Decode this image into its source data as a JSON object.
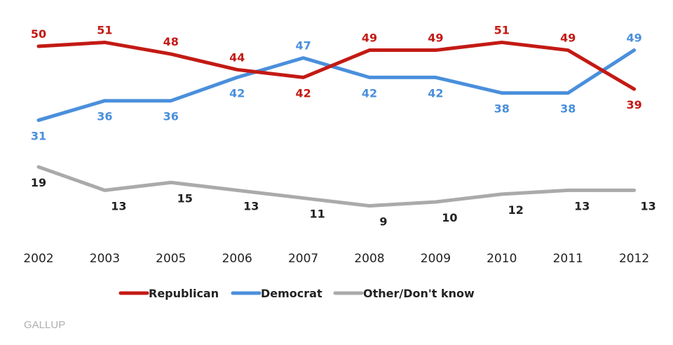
{
  "chart_data": {
    "type": "line",
    "title": "",
    "xlabel": "",
    "ylabel": "",
    "categories": [
      "2002",
      "2003",
      "2005",
      "2006",
      "2007",
      "2008",
      "2009",
      "2010",
      "2011",
      "2012"
    ],
    "series": [
      {
        "name": "Republican",
        "color": "#c31a14",
        "values": [
          50,
          51,
          48,
          44,
          42,
          49,
          49,
          51,
          49,
          39
        ]
      },
      {
        "name": "Democrat",
        "color": "#4a8fdc",
        "values": [
          31,
          36,
          36,
          42,
          47,
          42,
          42,
          38,
          38,
          49
        ]
      },
      {
        "name": "Other/Don't know",
        "color": "#aaaaaa",
        "values": [
          19,
          13,
          15,
          13,
          11,
          9,
          10,
          12,
          13,
          13
        ]
      }
    ],
    "grid": false,
    "legend_position": "bottom"
  },
  "source": "GALLUP"
}
